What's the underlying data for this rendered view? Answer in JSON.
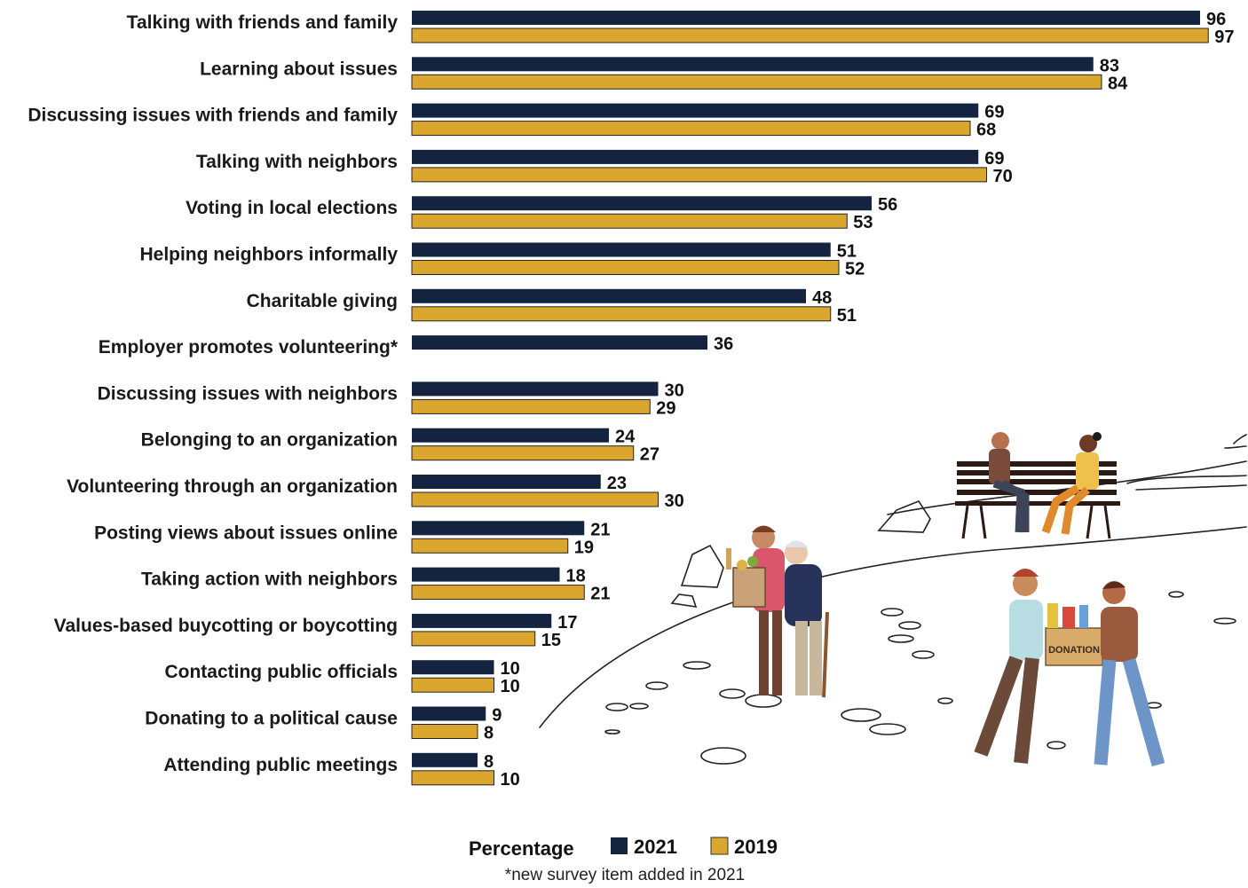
{
  "chart_data": {
    "type": "bar",
    "orientation": "horizontal",
    "categories": [
      "Talking with friends and family",
      "Learning about issues",
      "Discussing issues with friends and family",
      "Talking with neighbors",
      "Voting in local elections",
      "Helping neighbors informally",
      "Charitable giving",
      "Employer promotes volunteering*",
      "Discussing issues with neighbors",
      "Belonging to an organization",
      "Volunteering through an organization",
      "Posting views about issues online",
      "Taking action with neighbors",
      "Values-based buycotting or boycotting",
      "Contacting public officials",
      "Donating to a political cause",
      "Attending public meetings"
    ],
    "series": [
      {
        "name": "2021",
        "color": "#14233f",
        "values": [
          96,
          83,
          69,
          69,
          56,
          51,
          48,
          36,
          30,
          24,
          23,
          21,
          18,
          17,
          10,
          9,
          8
        ]
      },
      {
        "name": "2019",
        "color": "#dba62e",
        "values": [
          97,
          84,
          68,
          70,
          53,
          52,
          51,
          null,
          29,
          27,
          30,
          19,
          21,
          15,
          10,
          8,
          10
        ]
      }
    ],
    "xlim": [
      0,
      100
    ],
    "grid": false,
    "legend": {
      "title": "Percentage",
      "placement": "bottom-center"
    },
    "footnote": "*new survey item added in 2021"
  },
  "illustration": {
    "description_icons": [
      "bench-conversation-icon",
      "elderly-help-icon",
      "donation-box-icon"
    ],
    "box_text": "DONATION"
  }
}
